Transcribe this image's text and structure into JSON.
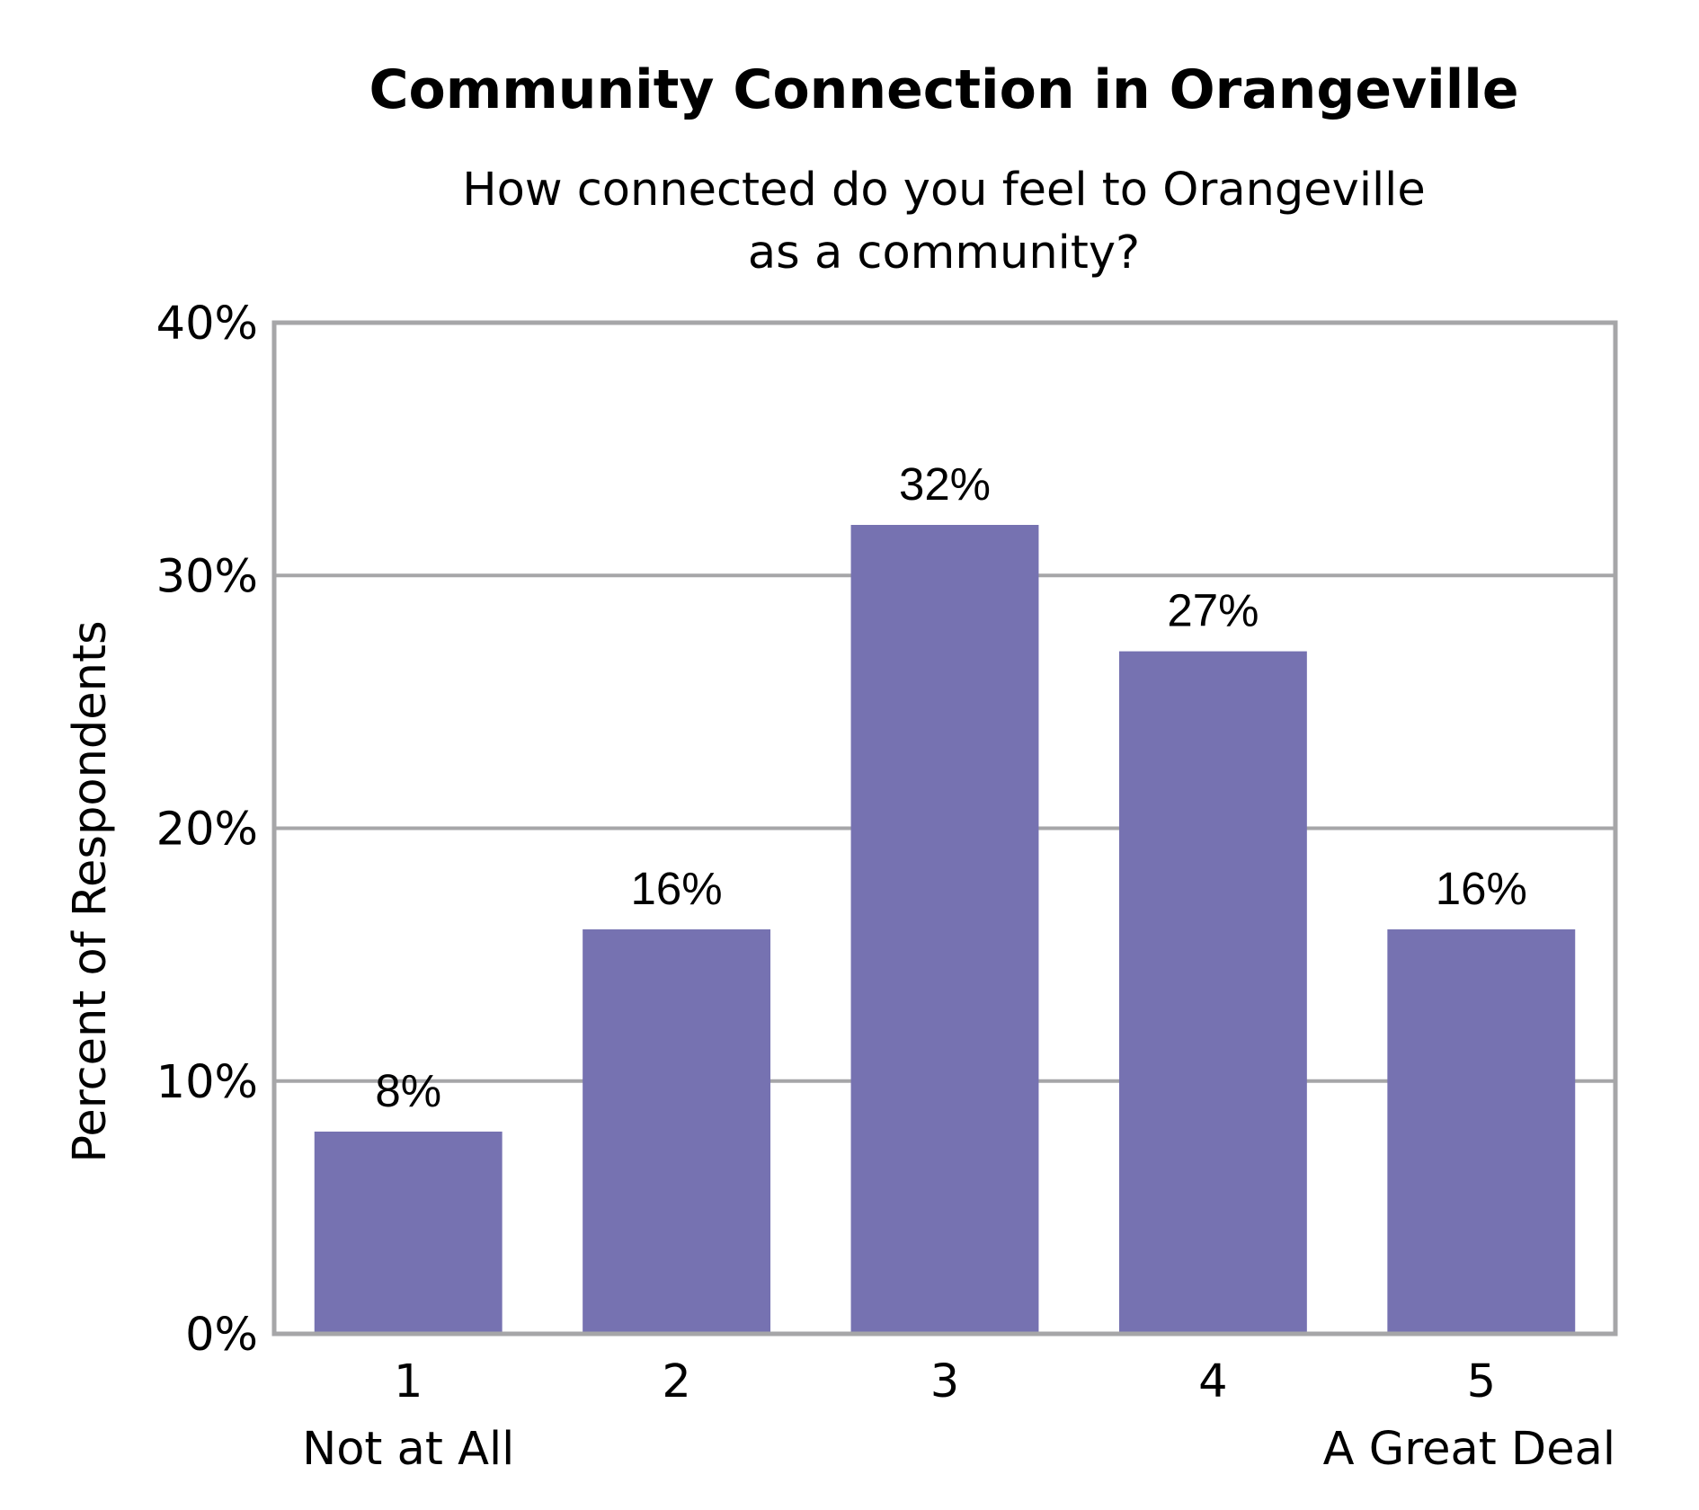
{
  "chart_data": {
    "type": "bar",
    "title": "Community Connection in Orangeville",
    "subtitle": [
      "How connected do you feel to Orangeville",
      "as a community?"
    ],
    "ylabel": "Percent of Respondents",
    "xlabel": "",
    "categories": [
      "1",
      "2",
      "3",
      "4",
      "5"
    ],
    "category_sublabels": [
      "Not at All",
      "",
      "",
      "",
      "A Great Deal"
    ],
    "values": [
      8,
      16,
      32,
      27,
      16
    ],
    "value_labels": [
      "8%",
      "16%",
      "32%",
      "27%",
      "16%"
    ],
    "ylim": [
      0,
      40
    ],
    "yticks": [
      0,
      10,
      20,
      30,
      40
    ],
    "ytick_labels": [
      "0%",
      "10%",
      "20%",
      "30%",
      "40%"
    ],
    "grid": true,
    "legend": "none",
    "colors": {
      "bar": "#7672b1",
      "grid": "#a6a6a8",
      "frame": "#a6a6a8"
    }
  }
}
